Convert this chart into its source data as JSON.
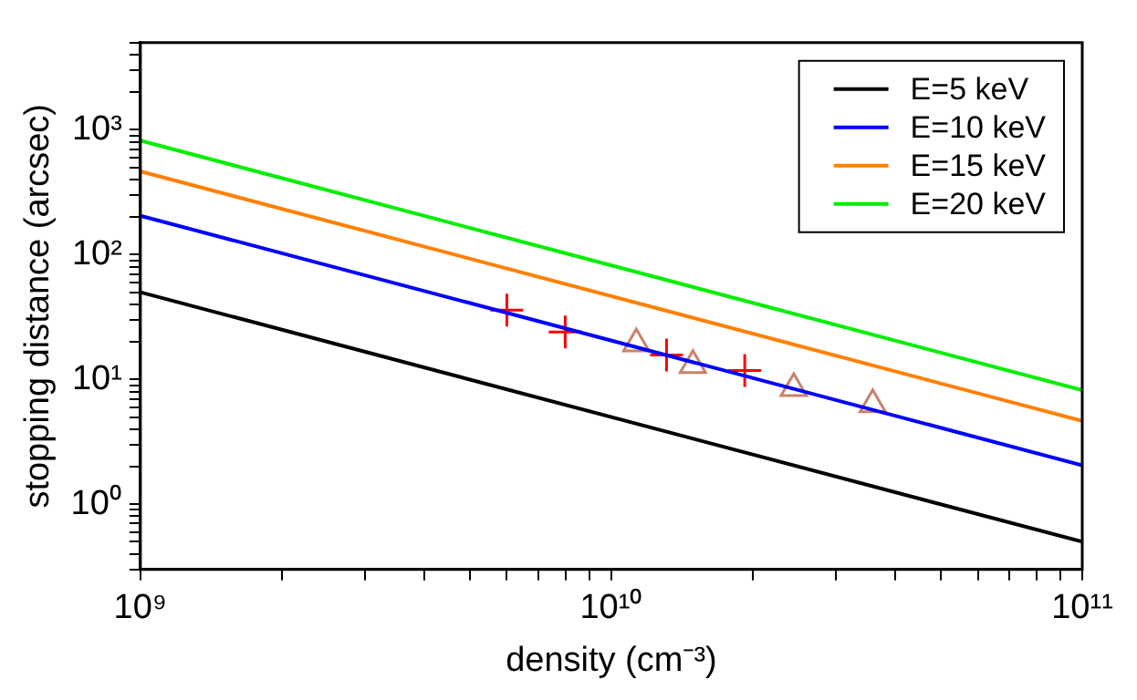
{
  "chart_data": {
    "type": "line",
    "xlabel": "density (cm⁻³)",
    "ylabel": "stopping distance (arcsec)",
    "log": "xy",
    "grid": false,
    "legend": "top right",
    "marker": "none",
    "line_style": "solid",
    "xlim": [
      1000000000.0,
      100000000000.0
    ],
    "ylim": [
      0.3,
      5000
    ],
    "xticks": [
      {
        "value": 1000000000.0,
        "label": "10⁹"
      },
      {
        "value": 2000000000.0,
        "label": null
      },
      {
        "value": 3000000000.0,
        "label": null
      },
      {
        "value": 4000000000.0,
        "label": null
      },
      {
        "value": 5000000000.0,
        "label": null
      },
      {
        "value": 6000000000.0,
        "label": null
      },
      {
        "value": 7000000000.0,
        "label": null
      },
      {
        "value": 8000000000.0,
        "label": null
      },
      {
        "value": 9000000000.0,
        "label": null
      },
      {
        "value": 10000000000.0,
        "label": "10¹⁰"
      },
      {
        "value": 20000000000.0,
        "label": null
      },
      {
        "value": 30000000000.0,
        "label": null
      },
      {
        "value": 40000000000.0,
        "label": null
      },
      {
        "value": 50000000000.0,
        "label": null
      },
      {
        "value": 60000000000.0,
        "label": null
      },
      {
        "value": 70000000000.0,
        "label": null
      },
      {
        "value": 80000000000.0,
        "label": null
      },
      {
        "value": 90000000000.0,
        "label": null
      },
      {
        "value": 100000000000.0,
        "label": "10¹¹"
      }
    ],
    "yticks": [
      {
        "value": 0.3,
        "label": null
      },
      {
        "value": 0.4,
        "label": null
      },
      {
        "value": 0.5,
        "label": null
      },
      {
        "value": 0.6,
        "label": null
      },
      {
        "value": 0.7,
        "label": null
      },
      {
        "value": 0.8,
        "label": null
      },
      {
        "value": 0.9,
        "label": null
      },
      {
        "value": 1,
        "label": "10⁰"
      },
      {
        "value": 2,
        "label": null
      },
      {
        "value": 3,
        "label": null
      },
      {
        "value": 4,
        "label": null
      },
      {
        "value": 5,
        "label": null
      },
      {
        "value": 6,
        "label": null
      },
      {
        "value": 7,
        "label": null
      },
      {
        "value": 8,
        "label": null
      },
      {
        "value": 9,
        "label": null
      },
      {
        "value": 10,
        "label": "10¹"
      },
      {
        "value": 20,
        "label": null
      },
      {
        "value": 30,
        "label": null
      },
      {
        "value": 40,
        "label": null
      },
      {
        "value": 50,
        "label": null
      },
      {
        "value": 60,
        "label": null
      },
      {
        "value": 70,
        "label": null
      },
      {
        "value": 80,
        "label": null
      },
      {
        "value": 90,
        "label": null
      },
      {
        "value": 100,
        "label": "10²"
      },
      {
        "value": 200,
        "label": null
      },
      {
        "value": 300,
        "label": null
      },
      {
        "value": 400,
        "label": null
      },
      {
        "value": 500,
        "label": null
      },
      {
        "value": 600,
        "label": null
      },
      {
        "value": 700,
        "label": null
      },
      {
        "value": 800,
        "label": null
      },
      {
        "value": 900,
        "label": null
      },
      {
        "value": 1000,
        "label": "10³"
      },
      {
        "value": 2000,
        "label": null
      },
      {
        "value": 3000,
        "label": null
      },
      {
        "value": 4000,
        "label": null
      },
      {
        "value": 5000,
        "label": null
      }
    ],
    "series": [
      {
        "name": "E=5 keV",
        "color": "#000000",
        "x": [
          1000000000.0,
          100000000000.0
        ],
        "values": [
          50,
          0.5
        ]
      },
      {
        "name": "E=10 keV",
        "color": "#0000ff",
        "x": [
          1000000000.0,
          100000000000.0
        ],
        "values": [
          205,
          2.05
        ]
      },
      {
        "name": "E=15 keV",
        "color": "#ff8000",
        "x": [
          1000000000.0,
          100000000000.0
        ],
        "values": [
          465,
          4.65
        ]
      },
      {
        "name": "E=20 keV",
        "color": "#00ee00",
        "x": [
          1000000000.0,
          100000000000.0
        ],
        "values": [
          820,
          8.2
        ]
      },
      {
        "type": "scatter",
        "marker": "cross",
        "color": "#ff0000",
        "x": [
          6000000000.0,
          7980000000.0,
          13100000000.0,
          19200000000.0
        ],
        "values": [
          36,
          24,
          15.7,
          11.8
        ]
      },
      {
        "type": "scatter",
        "marker": "triangle",
        "color": "#c8826a",
        "x": [
          11300000000.0,
          14900000000.0,
          24400000000.0,
          35900000000.0
        ],
        "values": [
          19.4,
          13,
          8.5,
          6.3
        ]
      }
    ]
  }
}
